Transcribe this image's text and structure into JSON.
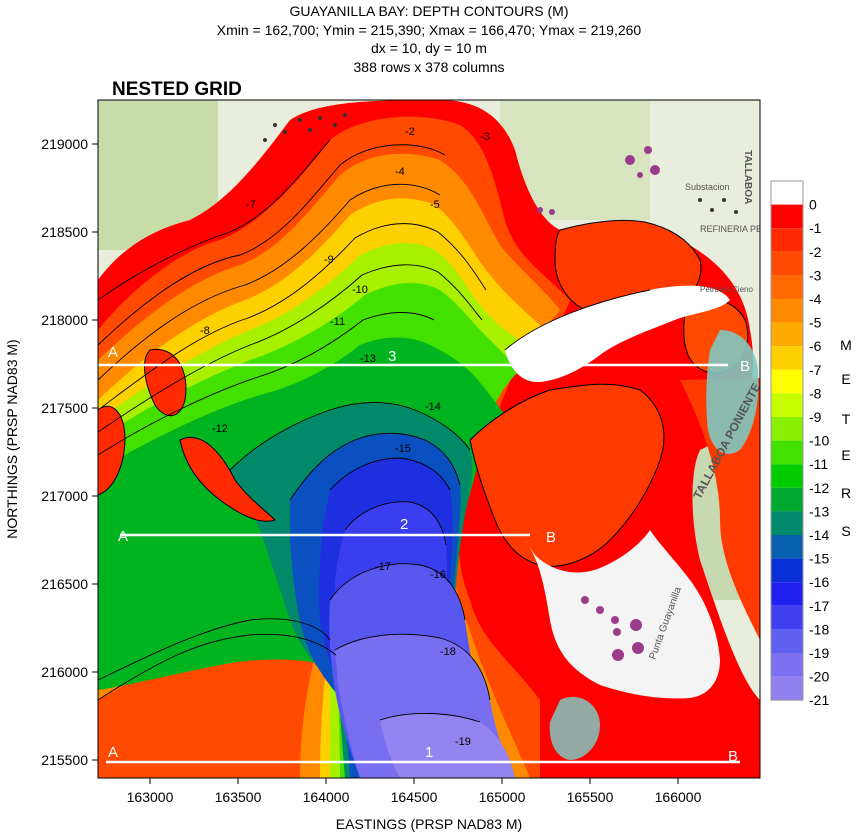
{
  "title": {
    "line1": "GUAYANILLA BAY: DEPTH CONTOURS (M)",
    "line2": "Xmin = 162,700; Ymin = 215,390; Xmax = 166,470; Ymax = 219,260",
    "line3": "dx = 10, dy = 10 m",
    "line4": "388 rows x 378 columns"
  },
  "map_label": "NESTED GRID",
  "axes": {
    "xlabel": "EASTINGS (PRSP NAD83 M)",
    "ylabel": "NORTHINGS (PRSP NAD83 M)",
    "xticks": [
      "163000",
      "163500",
      "164000",
      "164500",
      "165000",
      "165500",
      "166000"
    ],
    "yticks": [
      "215500",
      "216000",
      "216500",
      "217000",
      "217500",
      "218000",
      "218500",
      "219000"
    ]
  },
  "colorbar": {
    "levels": [
      "0",
      "-1",
      "-2",
      "-3",
      "-4",
      "-5",
      "-6",
      "-7",
      "-8",
      "-9",
      "-10",
      "-11",
      "-12",
      "-13",
      "-14",
      "-15",
      "-16",
      "-17",
      "-18",
      "-19",
      "-20",
      "-21"
    ],
    "colors": [
      "#ff0000",
      "#ff2a00",
      "#ff4a00",
      "#ff6a00",
      "#ff8a00",
      "#ffaa00",
      "#ffd000",
      "#ffff00",
      "#c8ff00",
      "#88f000",
      "#44e000",
      "#00cc00",
      "#00aa30",
      "#008a6a",
      "#0a60b0",
      "#0a30d8",
      "#2020f0",
      "#4040f0",
      "#6060f0",
      "#7c70f0",
      "#9080f0",
      "#a68cf0"
    ],
    "unit_letters": [
      "M",
      "E",
      "T",
      "E",
      "R",
      "S"
    ]
  },
  "sections": [
    {
      "number": "3",
      "start": "A",
      "end": "B"
    },
    {
      "number": "2",
      "start": "A",
      "end": "B"
    },
    {
      "number": "1",
      "start": "A",
      "end": "B"
    }
  ],
  "contour_labels": [
    "-2",
    "-3",
    "-4",
    "-5",
    "-7",
    "-8",
    "-9",
    "-10",
    "-11",
    "-12",
    "-13",
    "-14",
    "-15",
    "-16",
    "-17",
    "-18",
    "-19"
  ],
  "basemap_labels": [
    "Substacion",
    "REFINERIA PETROLEO",
    "TALLABOA PONIENTE",
    "TALLABOA",
    "Punta Guayanilla",
    "Petroleo Cieno"
  ]
}
